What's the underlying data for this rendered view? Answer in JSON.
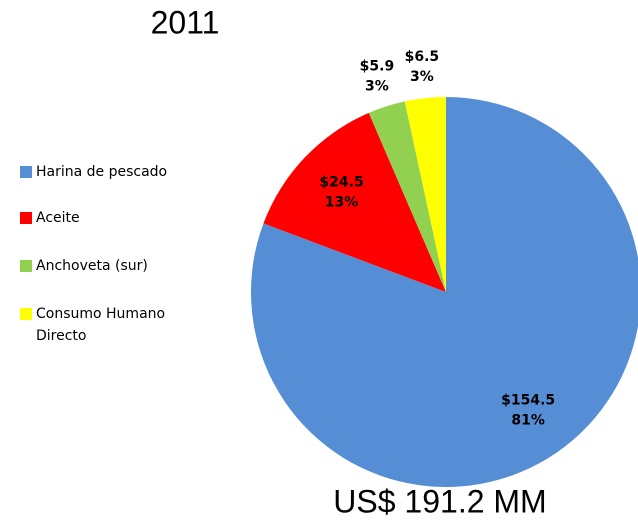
{
  "chart_data": {
    "type": "pie",
    "title": "2011",
    "categories": [
      "Harina de pescado",
      "Aceite",
      "Anchoveta (sur)",
      "Consumo Humano Directo"
    ],
    "values": [
      154.5,
      24.5,
      5.9,
      6.5
    ],
    "value_labels": [
      "$154.5",
      "$24.5",
      "$5.9",
      "$6.5"
    ],
    "percentages": [
      81,
      13,
      3,
      3
    ],
    "percentage_labels": [
      "81%",
      "13%",
      "3%",
      "3%"
    ],
    "colors": [
      "#558ed5",
      "#ff0000",
      "#92d050",
      "#ffff00"
    ],
    "annotation": "US$ 191.2 MM",
    "legend": "left"
  }
}
